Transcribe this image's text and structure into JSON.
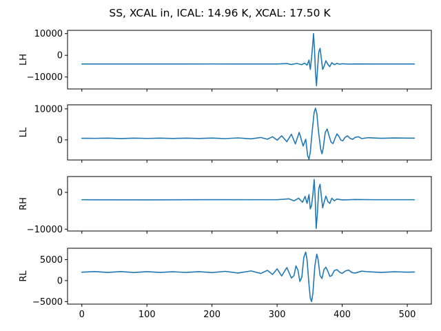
{
  "figure": {
    "title": "SS, XCAL in, ICAL: 14.96 K, XCAL: 17.50 K"
  },
  "chart_data": [
    {
      "type": "line",
      "ylabel": "LH",
      "xlim": [
        -22,
        537
      ],
      "ylim": [
        -15500,
        11500
      ],
      "xticks": [
        0,
        100,
        200,
        300,
        400,
        500
      ],
      "xtick_labels_shown": false,
      "yticks": [
        10000,
        0,
        -10000
      ],
      "ytick_labels": [
        "10000",
        "0",
        "−10000"
      ],
      "color": "#1f77b4",
      "baseline": -4000,
      "points": [
        [
          0,
          -4000
        ],
        [
          100,
          -4020
        ],
        [
          200,
          -3990
        ],
        [
          250,
          -4020
        ],
        [
          300,
          -4000
        ],
        [
          315,
          -3800
        ],
        [
          322,
          -4250
        ],
        [
          330,
          -3750
        ],
        [
          338,
          -4300
        ],
        [
          342,
          -3600
        ],
        [
          346,
          -4500
        ],
        [
          349,
          -2200
        ],
        [
          351,
          -6500
        ],
        [
          353,
          -1000
        ],
        [
          355,
          6000
        ],
        [
          356,
          10000
        ],
        [
          357.5,
          2500
        ],
        [
          359,
          -8000
        ],
        [
          360.5,
          -14000
        ],
        [
          362,
          -7000
        ],
        [
          364,
          1500
        ],
        [
          366,
          3200
        ],
        [
          368,
          -1500
        ],
        [
          370,
          -6500
        ],
        [
          372,
          -5200
        ],
        [
          375,
          -2500
        ],
        [
          378,
          -4200
        ],
        [
          381,
          -5200
        ],
        [
          384,
          -3400
        ],
        [
          388,
          -4300
        ],
        [
          392,
          -3700
        ],
        [
          396,
          -4100
        ],
        [
          400,
          -3900
        ],
        [
          410,
          -4050
        ],
        [
          420,
          -3950
        ],
        [
          450,
          -4000
        ],
        [
          511,
          -4000
        ]
      ]
    },
    {
      "type": "line",
      "ylabel": "LL",
      "xlim": [
        -22,
        537
      ],
      "ylim": [
        -6500,
        11300
      ],
      "xticks": [
        0,
        100,
        200,
        300,
        400,
        500
      ],
      "xtick_labels_shown": false,
      "yticks": [
        10000,
        0
      ],
      "ytick_labels": [
        "10000",
        "0"
      ],
      "color": "#1f77b4",
      "baseline": 500,
      "points": [
        [
          0,
          500
        ],
        [
          20,
          480
        ],
        [
          40,
          540
        ],
        [
          60,
          420
        ],
        [
          80,
          560
        ],
        [
          100,
          450
        ],
        [
          120,
          540
        ],
        [
          140,
          440
        ],
        [
          160,
          560
        ],
        [
          180,
          430
        ],
        [
          200,
          570
        ],
        [
          220,
          400
        ],
        [
          240,
          620
        ],
        [
          260,
          330
        ],
        [
          275,
          760
        ],
        [
          285,
          200
        ],
        [
          293,
          1000
        ],
        [
          300,
          -100
        ],
        [
          307,
          1300
        ],
        [
          315,
          -600
        ],
        [
          322,
          1800
        ],
        [
          328,
          -1300
        ],
        [
          334,
          2400
        ],
        [
          340,
          -2000
        ],
        [
          344,
          200
        ],
        [
          347,
          -5200
        ],
        [
          349,
          -6200
        ],
        [
          351,
          -4000
        ],
        [
          354,
          3000
        ],
        [
          357,
          9000
        ],
        [
          359,
          10200
        ],
        [
          361,
          8500
        ],
        [
          364,
          2000
        ],
        [
          367,
          -3000
        ],
        [
          369,
          -4500
        ],
        [
          371,
          -2500
        ],
        [
          374,
          2400
        ],
        [
          377,
          3500
        ],
        [
          380,
          1200
        ],
        [
          383,
          -800
        ],
        [
          386,
          -1200
        ],
        [
          389,
          500
        ],
        [
          392,
          1900
        ],
        [
          395,
          1100
        ],
        [
          398,
          -100
        ],
        [
          401,
          -300
        ],
        [
          404,
          700
        ],
        [
          408,
          1300
        ],
        [
          412,
          500
        ],
        [
          416,
          150
        ],
        [
          420,
          800
        ],
        [
          425,
          1000
        ],
        [
          430,
          400
        ],
        [
          440,
          700
        ],
        [
          460,
          500
        ],
        [
          480,
          600
        ],
        [
          500,
          550
        ],
        [
          511,
          560
        ]
      ]
    },
    {
      "type": "line",
      "ylabel": "RH",
      "xlim": [
        -22,
        537
      ],
      "ylim": [
        -10500,
        4300
      ],
      "xticks": [
        0,
        100,
        200,
        300,
        400,
        500
      ],
      "xtick_labels_shown": false,
      "yticks": [
        0,
        -10000
      ],
      "ytick_labels": [
        "0",
        "−10000"
      ],
      "color": "#1f77b4",
      "baseline": -2000,
      "points": [
        [
          0,
          -2000
        ],
        [
          100,
          -2030
        ],
        [
          200,
          -1990
        ],
        [
          300,
          -2000
        ],
        [
          318,
          -1750
        ],
        [
          326,
          -2300
        ],
        [
          333,
          -1600
        ],
        [
          339,
          -2700
        ],
        [
          343,
          -1100
        ],
        [
          346,
          -3000
        ],
        [
          349,
          -600
        ],
        [
          351,
          -4500
        ],
        [
          353,
          -3500
        ],
        [
          355,
          -500
        ],
        [
          357,
          3500
        ],
        [
          358.5,
          -1500
        ],
        [
          360,
          -9800
        ],
        [
          362,
          -5500
        ],
        [
          364,
          1000
        ],
        [
          366,
          2200
        ],
        [
          368,
          -1000
        ],
        [
          370,
          -4200
        ],
        [
          372,
          -2800
        ],
        [
          375,
          -1000
        ],
        [
          378,
          -2500
        ],
        [
          381,
          -3000
        ],
        [
          384,
          -1600
        ],
        [
          388,
          -2300
        ],
        [
          392,
          -1800
        ],
        [
          400,
          -2050
        ],
        [
          420,
          -1950
        ],
        [
          450,
          -2000
        ],
        [
          511,
          -2000
        ]
      ]
    },
    {
      "type": "line",
      "ylabel": "RL",
      "xlim": [
        -22,
        537
      ],
      "ylim": [
        -5600,
        7700
      ],
      "xticks": [
        0,
        100,
        200,
        300,
        400,
        500
      ],
      "xtick_labels": [
        "0",
        "100",
        "200",
        "300",
        "400",
        "500"
      ],
      "yticks": [
        5000,
        0,
        -5000
      ],
      "ytick_labels": [
        "5000",
        "0",
        "−5000"
      ],
      "color": "#1f77b4",
      "baseline": 2000,
      "points": [
        [
          0,
          2000
        ],
        [
          20,
          2150
        ],
        [
          40,
          1950
        ],
        [
          60,
          2150
        ],
        [
          80,
          1920
        ],
        [
          100,
          2120
        ],
        [
          120,
          1950
        ],
        [
          140,
          2100
        ],
        [
          160,
          1950
        ],
        [
          180,
          2120
        ],
        [
          200,
          1900
        ],
        [
          220,
          2200
        ],
        [
          240,
          1800
        ],
        [
          260,
          2300
        ],
        [
          275,
          1700
        ],
        [
          285,
          2450
        ],
        [
          293,
          1450
        ],
        [
          300,
          2800
        ],
        [
          307,
          1100
        ],
        [
          315,
          3100
        ],
        [
          322,
          600
        ],
        [
          326,
          1200
        ],
        [
          329,
          3500
        ],
        [
          332,
          2500
        ],
        [
          335,
          -200
        ],
        [
          338,
          800
        ],
        [
          341,
          5500
        ],
        [
          344,
          6800
        ],
        [
          346,
          5000
        ],
        [
          349,
          -1000
        ],
        [
          351,
          -4200
        ],
        [
          353,
          -5000
        ],
        [
          355,
          -3000
        ],
        [
          358,
          3500
        ],
        [
          361,
          6300
        ],
        [
          363,
          5000
        ],
        [
          366,
          1200
        ],
        [
          369,
          500
        ],
        [
          372,
          2600
        ],
        [
          375,
          3200
        ],
        [
          378,
          2200
        ],
        [
          381,
          1000
        ],
        [
          384,
          1200
        ],
        [
          388,
          2400
        ],
        [
          392,
          2600
        ],
        [
          396,
          2000
        ],
        [
          400,
          1700
        ],
        [
          405,
          2300
        ],
        [
          410,
          2500
        ],
        [
          415,
          1900
        ],
        [
          420,
          1800
        ],
        [
          430,
          2250
        ],
        [
          440,
          2100
        ],
        [
          460,
          1950
        ],
        [
          480,
          2100
        ],
        [
          500,
          2000
        ],
        [
          511,
          2050
        ]
      ]
    }
  ]
}
